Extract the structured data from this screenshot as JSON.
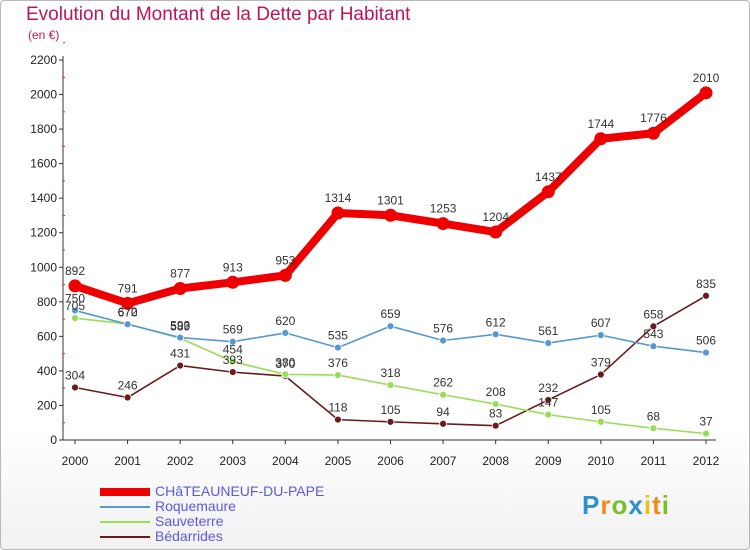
{
  "chart_data": {
    "type": "line",
    "title": "Evolution du Montant de la Dette par Habitant",
    "subtitle": "(en €)",
    "categories": [
      "2000",
      "2001",
      "2002",
      "2003",
      "2004",
      "2005",
      "2006",
      "2007",
      "2008",
      "2009",
      "2010",
      "2011",
      "2012"
    ],
    "ylim": [
      0,
      2200
    ],
    "yticks": [
      0,
      200,
      400,
      600,
      800,
      1000,
      1200,
      1400,
      1600,
      1800,
      2000,
      2200
    ],
    "grid": false,
    "legend_position": "bottom-left",
    "series": [
      {
        "name": "CHâTEAUNEUF-DU-PAPE",
        "color": "#ee0000",
        "values": [
          892,
          791,
          877,
          913,
          953,
          1314,
          1301,
          1253,
          1204,
          1437,
          1744,
          1776,
          2010
        ]
      },
      {
        "name": "Roquemaure",
        "color": "#5599d0",
        "values": [
          750,
          670,
          593,
          569,
          620,
          535,
          659,
          576,
          612,
          561,
          607,
          543,
          506
        ]
      },
      {
        "name": "Sauveterre",
        "color": "#99dd55",
        "values": [
          705,
          672,
          589,
          454,
          380,
          376,
          318,
          262,
          208,
          147,
          105,
          68,
          37
        ]
      },
      {
        "name": "Bédarrides",
        "color": "#6b1a1a",
        "values": [
          304,
          246,
          431,
          393,
          370,
          118,
          105,
          94,
          83,
          232,
          379,
          658,
          835
        ]
      }
    ]
  },
  "logo": {
    "text": "Proxiti",
    "letters": [
      "P",
      "r",
      "o",
      "x",
      "i",
      "t",
      "i"
    ],
    "colors": [
      "#2e8fd6",
      "#f08a1c",
      "#7cbd2a",
      "#2e8fd6",
      "#e8c21a",
      "#f08a1c",
      "#7cbd2a"
    ]
  }
}
